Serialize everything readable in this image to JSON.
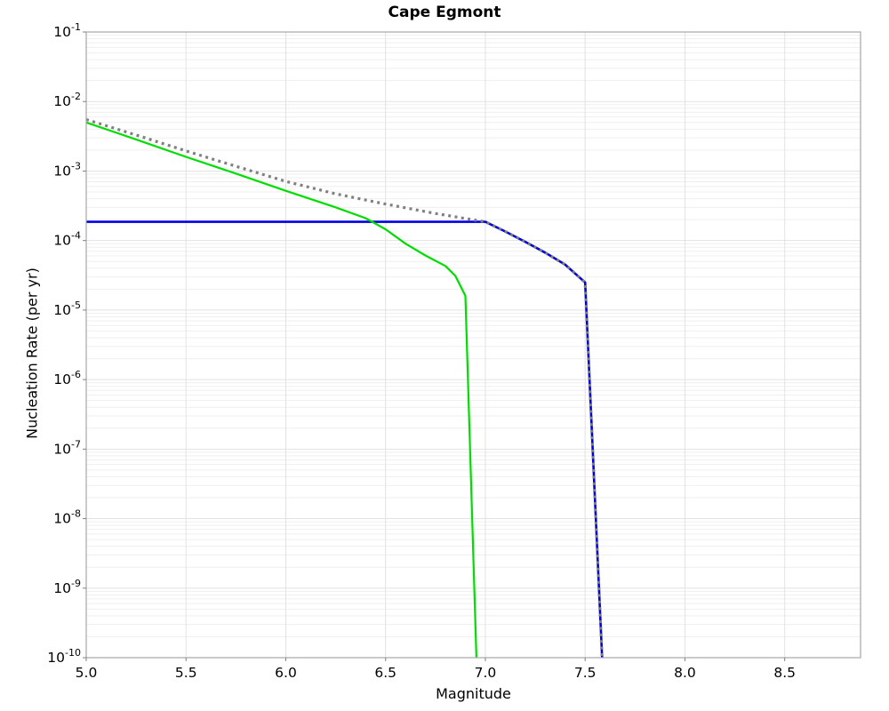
{
  "chart_data": {
    "type": "line",
    "title": "Cape Egmont",
    "xlabel": "Magnitude",
    "ylabel": "Nucleation Rate (per yr)",
    "legend": "none",
    "grid": {
      "vertical": true,
      "horizontal_major": true,
      "horizontal_minor": true
    },
    "x_axis": {
      "min": 5.0,
      "max": 8.88,
      "ticks": [
        5.0,
        5.5,
        6.0,
        6.5,
        7.0,
        7.5,
        8.0,
        8.5
      ],
      "tick_labels": [
        "5.0",
        "5.5",
        "6.0",
        "6.5",
        "7.0",
        "7.5",
        "8.0",
        "8.5"
      ]
    },
    "y_axis": {
      "scale": "log",
      "min": 1e-10,
      "max": 0.1,
      "tick_exponents": [
        -1,
        -2,
        -3,
        -4,
        -5,
        -6,
        -7,
        -8,
        -9,
        -10
      ],
      "tick_base": "10"
    },
    "series": [
      {
        "name": "blue-solid-line",
        "color": "#0000e0",
        "style": "solid",
        "width": 2.6,
        "points": [
          [
            5.0,
            0.000186
          ],
          [
            7.0,
            0.000186
          ],
          [
            7.1,
            0.000135
          ],
          [
            7.2,
            9.6e-05
          ],
          [
            7.3,
            6.7e-05
          ],
          [
            7.4,
            4.5e-05
          ],
          [
            7.5,
            2.5e-05
          ],
          [
            7.585,
            1e-10
          ]
        ]
      },
      {
        "name": "green-solid-line",
        "color": "#00dd00",
        "style": "solid",
        "width": 2.2,
        "points": [
          [
            5.0,
            0.005
          ],
          [
            5.25,
            0.00285
          ],
          [
            5.5,
            0.0016
          ],
          [
            5.75,
            0.00092
          ],
          [
            6.0,
            0.00052
          ],
          [
            6.25,
            0.0003
          ],
          [
            6.4,
            0.00021
          ],
          [
            6.5,
            0.000145
          ],
          [
            6.6,
            9e-05
          ],
          [
            6.7,
            6.1e-05
          ],
          [
            6.8,
            4.3e-05
          ],
          [
            6.85,
            3.1e-05
          ],
          [
            6.9,
            1.6e-05
          ],
          [
            6.955,
            1e-10
          ]
        ]
      },
      {
        "name": "grey-dotted-line",
        "color": "#808080",
        "style": "dotted",
        "width": 3.2,
        "points": [
          [
            5.0,
            0.0055
          ],
          [
            5.25,
            0.0033
          ],
          [
            5.5,
            0.00195
          ],
          [
            5.75,
            0.00117
          ],
          [
            6.0,
            0.00071
          ],
          [
            6.25,
            0.00047
          ],
          [
            6.5,
            0.000335
          ],
          [
            6.75,
            0.000245
          ],
          [
            7.0,
            0.000186
          ],
          [
            7.1,
            0.000135
          ],
          [
            7.2,
            9.6e-05
          ],
          [
            7.3,
            6.7e-05
          ],
          [
            7.4,
            4.5e-05
          ],
          [
            7.5,
            2.5e-05
          ],
          [
            7.585,
            1e-10
          ]
        ]
      }
    ],
    "style_colors": {
      "grid_major": "#e2e2e2",
      "grid_minor": "#efefef",
      "spine": "#a6a6a6",
      "tick": "#808080",
      "text": "#000000",
      "background": "#ffffff"
    }
  }
}
